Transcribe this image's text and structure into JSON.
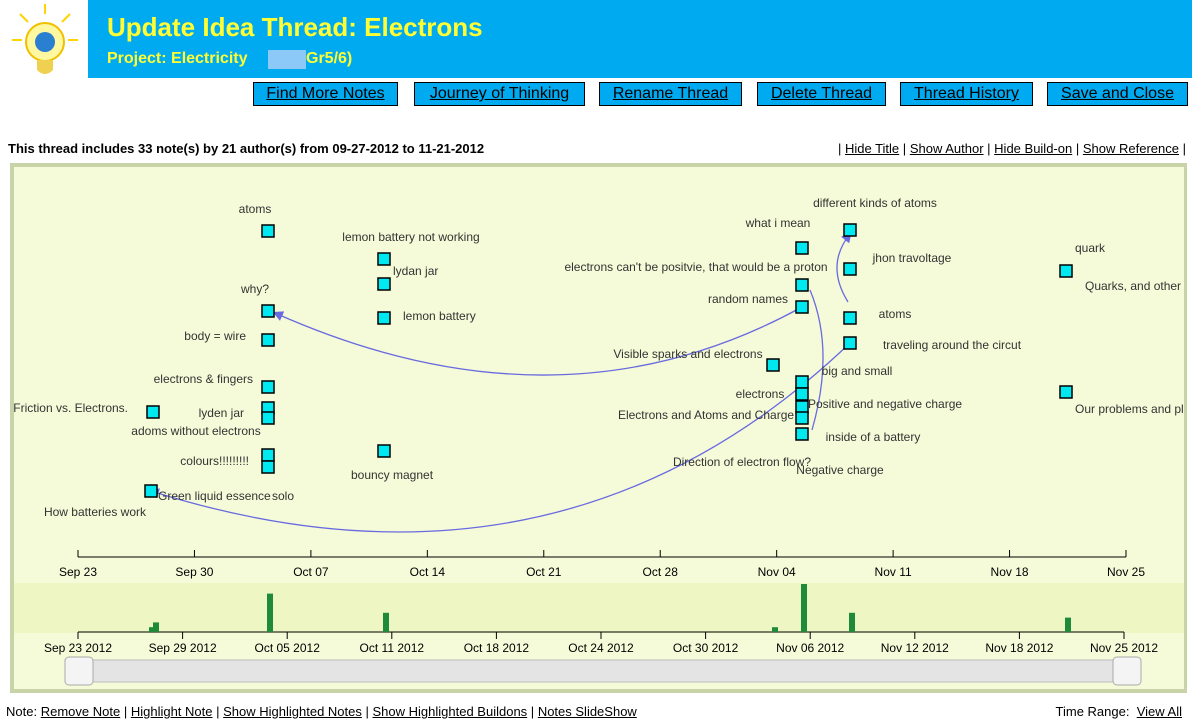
{
  "header": {
    "title": "Update Idea Thread: Electrons",
    "project": "Project: Electricity",
    "project_suffix": "Gr5/6)"
  },
  "buttons": [
    "Find More Notes",
    "Journey of Thinking",
    "Rename Thread",
    "Delete Thread",
    "Thread History",
    "Save and Close"
  ],
  "summary": "This thread includes 33 note(s) by 21 author(s) from 09-27-2012 to 11-21-2012",
  "separator": "|",
  "view_links": [
    "Hide Title",
    "Show Author",
    "Hide Build-on",
    "Show Reference"
  ],
  "notes": [
    "atoms",
    "lemon battery not working",
    "lydan jar",
    "why?",
    "lemon battery",
    "body = wire",
    "electrons & fingers",
    "Friction vs. Electrons.",
    "lyden jar",
    "adoms without electrons",
    "colours!!!!!!!!!",
    "bouncy magnet",
    "How batteries work",
    "Green liquid essence",
    "solo",
    "different kinds of atoms",
    "what i mean",
    "jhon travoltage",
    "electrons can't be positvie, that would be a proton",
    "random names",
    "atoms",
    "traveling around the circut",
    "Visible sparks and electrons",
    "big and small",
    "electrons",
    "Positive and negative charge",
    "Electrons and Atoms and Charge",
    "inside of a battery",
    "Direction of electron flow?",
    "Negative charge",
    "quark",
    "Quarks, and other",
    "Our problems and plans"
  ],
  "axis_ticks": [
    "Sep 23",
    "Sep 30",
    "Oct 07",
    "Oct 14",
    "Oct 21",
    "Oct 28",
    "Nov 04",
    "Nov 11",
    "Nov 18",
    "Nov 25"
  ],
  "timeline": {
    "ticks": [
      "Sep 23 2012",
      "Sep 29 2012",
      "Oct 05 2012",
      "Oct 11 2012",
      "Oct 18 2012",
      "Oct 24 2012",
      "Oct 30 2012",
      "Nov 06 2012",
      "Nov 12 2012",
      "Nov 18 2012",
      "Nov 25 2012"
    ],
    "counts": [
      1,
      2,
      8,
      4,
      1,
      10,
      4,
      3
    ]
  },
  "footer": {
    "label": "Note:",
    "links": [
      "Remove Note",
      "Highlight Note",
      "Show Highlighted Notes",
      "Show Highlighted Buildons",
      "Notes SlideShow"
    ],
    "range_label": "Time Range:",
    "range_link": "View All"
  }
}
